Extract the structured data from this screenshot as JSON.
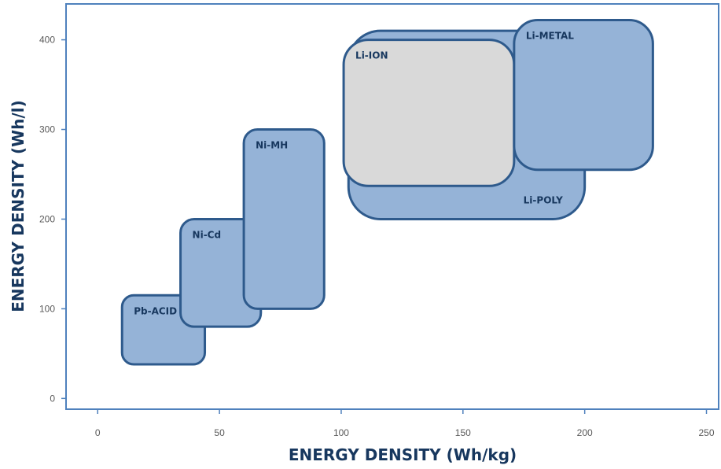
{
  "chart_data": {
    "type": "area",
    "title": "",
    "xlabel": "ENERGY DENSITY (Wh/kg)",
    "ylabel": "ENERGY DENSITY (Wh/l)",
    "xlim": [
      -13,
      255
    ],
    "ylim": [
      -12,
      440
    ],
    "x_ticks": [
      "0",
      "50",
      "100",
      "150",
      "200",
      "250"
    ],
    "y_ticks": [
      "0",
      "100",
      "200",
      "300",
      "400"
    ],
    "x_tick_values": [
      0,
      50,
      100,
      150,
      200,
      250
    ],
    "y_tick_values": [
      0,
      100,
      200,
      300,
      400
    ],
    "grid": false,
    "legend": "none",
    "colors": {
      "region_fill": "#95b3d7",
      "region_stroke": "#2e5a8c",
      "li_ion_fill": "#d9d9d9",
      "axis": "#4f81bd",
      "label": "#17375e"
    },
    "regions": [
      {
        "name": "Pb-ACID",
        "x": [
          10,
          44
        ],
        "y": [
          38,
          115
        ],
        "fill": "region_fill"
      },
      {
        "name": "Ni-Cd",
        "x": [
          34,
          67
        ],
        "y": [
          80,
          200
        ],
        "fill": "region_fill"
      },
      {
        "name": "Ni-MH",
        "x": [
          60,
          93
        ],
        "y": [
          100,
          300
        ],
        "fill": "region_fill"
      },
      {
        "name": "Li-POLY",
        "x": [
          103,
          200
        ],
        "y": [
          200,
          410
        ],
        "fill": "region_fill"
      },
      {
        "name": "Li-ION",
        "x": [
          101,
          171
        ],
        "y": [
          237,
          400
        ],
        "fill": "li_ion_fill"
      },
      {
        "name": "Li-METAL",
        "x": [
          171,
          228
        ],
        "y": [
          255,
          422
        ],
        "fill": "region_fill"
      }
    ]
  }
}
